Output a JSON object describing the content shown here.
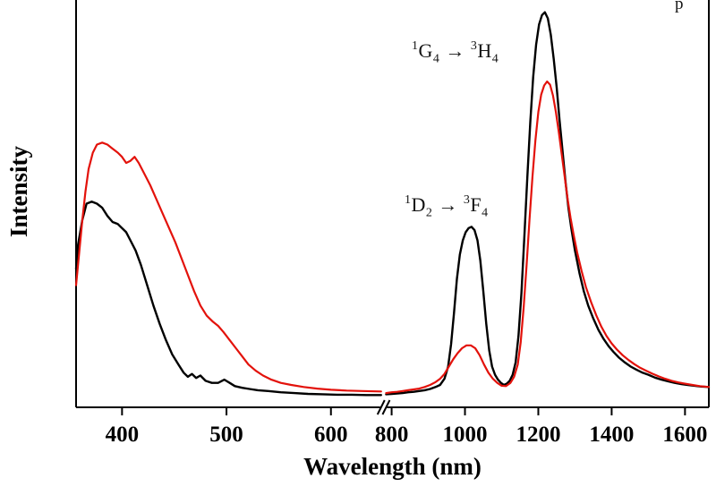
{
  "figure": {
    "corner_fragment": "p"
  },
  "chart_data": {
    "type": "line",
    "title": "",
    "xlabel": "Wavelength (nm)",
    "ylabel": "Intensity",
    "y_unit": "arbitrary units (no y ticks shown)",
    "grid": false,
    "legend_position": "none",
    "ylim": [
      0,
      1
    ],
    "x_axis": {
      "ticks": [
        400,
        500,
        600,
        800,
        1000,
        1200,
        1400,
        1600
      ],
      "break": {
        "left_domain": [
          356,
          648
        ],
        "left_range": [
          0,
          0.482
        ],
        "right_domain": [
          785,
          1665
        ],
        "right_range": [
          0.49,
          1.0
        ]
      }
    },
    "annotations": [
      {
        "label": "1G4 -> 3H4",
        "from_sup": "1",
        "from_letter": "G",
        "from_sub": "4",
        "arrow": "→",
        "to_sup": "3",
        "to_letter": "H",
        "to_sub": "4"
      },
      {
        "label": "1D2 -> 3F4",
        "from_sup": "1",
        "from_letter": "D",
        "from_sub": "2",
        "arrow": "→",
        "to_sup": "3",
        "to_letter": "F",
        "to_sub": "4"
      }
    ],
    "series": [
      {
        "name": "black",
        "color": "#000000",
        "width": 2.4,
        "points": [
          [
            356,
            0.34
          ],
          [
            358,
            0.4
          ],
          [
            362,
            0.46
          ],
          [
            366,
            0.5
          ],
          [
            371,
            0.505
          ],
          [
            376,
            0.5
          ],
          [
            381,
            0.49
          ],
          [
            386,
            0.47
          ],
          [
            391,
            0.455
          ],
          [
            396,
            0.45
          ],
          [
            400,
            0.44
          ],
          [
            404,
            0.43
          ],
          [
            408,
            0.41
          ],
          [
            413,
            0.385
          ],
          [
            418,
            0.35
          ],
          [
            424,
            0.3
          ],
          [
            430,
            0.25
          ],
          [
            436,
            0.205
          ],
          [
            442,
            0.165
          ],
          [
            448,
            0.13
          ],
          [
            454,
            0.105
          ],
          [
            459,
            0.085
          ],
          [
            463,
            0.075
          ],
          [
            467,
            0.082
          ],
          [
            471,
            0.072
          ],
          [
            475,
            0.078
          ],
          [
            480,
            0.065
          ],
          [
            486,
            0.06
          ],
          [
            492,
            0.06
          ],
          [
            498,
            0.068
          ],
          [
            503,
            0.06
          ],
          [
            508,
            0.052
          ],
          [
            515,
            0.048
          ],
          [
            522,
            0.045
          ],
          [
            530,
            0.042
          ],
          [
            540,
            0.04
          ],
          [
            552,
            0.037
          ],
          [
            565,
            0.035
          ],
          [
            578,
            0.033
          ],
          [
            592,
            0.032
          ],
          [
            606,
            0.031
          ],
          [
            620,
            0.031
          ],
          [
            634,
            0.03
          ],
          [
            648,
            0.03
          ],
          [
            785,
            0.032
          ],
          [
            800,
            0.033
          ],
          [
            815,
            0.034
          ],
          [
            830,
            0.035
          ],
          [
            845,
            0.037
          ],
          [
            860,
            0.038
          ],
          [
            875,
            0.04
          ],
          [
            890,
            0.042
          ],
          [
            905,
            0.045
          ],
          [
            920,
            0.05
          ],
          [
            932,
            0.055
          ],
          [
            944,
            0.07
          ],
          [
            954,
            0.1
          ],
          [
            962,
            0.155
          ],
          [
            970,
            0.23
          ],
          [
            978,
            0.315
          ],
          [
            986,
            0.375
          ],
          [
            994,
            0.41
          ],
          [
            1002,
            0.43
          ],
          [
            1010,
            0.44
          ],
          [
            1018,
            0.443
          ],
          [
            1026,
            0.435
          ],
          [
            1034,
            0.41
          ],
          [
            1042,
            0.36
          ],
          [
            1050,
            0.285
          ],
          [
            1058,
            0.205
          ],
          [
            1066,
            0.14
          ],
          [
            1074,
            0.1
          ],
          [
            1082,
            0.08
          ],
          [
            1090,
            0.068
          ],
          [
            1098,
            0.06
          ],
          [
            1106,
            0.055
          ],
          [
            1114,
            0.058
          ],
          [
            1122,
            0.065
          ],
          [
            1130,
            0.08
          ],
          [
            1138,
            0.11
          ],
          [
            1146,
            0.175
          ],
          [
            1154,
            0.28
          ],
          [
            1162,
            0.42
          ],
          [
            1170,
            0.565
          ],
          [
            1178,
            0.7
          ],
          [
            1186,
            0.81
          ],
          [
            1194,
            0.89
          ],
          [
            1202,
            0.94
          ],
          [
            1210,
            0.963
          ],
          [
            1218,
            0.97
          ],
          [
            1226,
            0.955
          ],
          [
            1234,
            0.915
          ],
          [
            1242,
            0.855
          ],
          [
            1250,
            0.785
          ],
          [
            1258,
            0.705
          ],
          [
            1266,
            0.63
          ],
          [
            1274,
            0.555
          ],
          [
            1282,
            0.49
          ],
          [
            1290,
            0.44
          ],
          [
            1300,
            0.385
          ],
          [
            1312,
            0.33
          ],
          [
            1324,
            0.285
          ],
          [
            1336,
            0.25
          ],
          [
            1350,
            0.218
          ],
          [
            1364,
            0.19
          ],
          [
            1378,
            0.168
          ],
          [
            1392,
            0.15
          ],
          [
            1406,
            0.135
          ],
          [
            1420,
            0.122
          ],
          [
            1436,
            0.11
          ],
          [
            1452,
            0.1
          ],
          [
            1468,
            0.092
          ],
          [
            1484,
            0.085
          ],
          [
            1500,
            0.08
          ],
          [
            1518,
            0.073
          ],
          [
            1536,
            0.068
          ],
          [
            1554,
            0.064
          ],
          [
            1572,
            0.06
          ],
          [
            1590,
            0.057
          ],
          [
            1608,
            0.055
          ],
          [
            1626,
            0.053
          ],
          [
            1644,
            0.051
          ],
          [
            1665,
            0.05
          ]
        ]
      },
      {
        "name": "red",
        "color": "#e3120b",
        "width": 2.2,
        "points": [
          [
            356,
            0.3
          ],
          [
            359,
            0.38
          ],
          [
            362,
            0.46
          ],
          [
            365,
            0.53
          ],
          [
            368,
            0.585
          ],
          [
            372,
            0.625
          ],
          [
            376,
            0.645
          ],
          [
            381,
            0.65
          ],
          [
            386,
            0.645
          ],
          [
            391,
            0.635
          ],
          [
            396,
            0.625
          ],
          [
            400,
            0.615
          ],
          [
            404,
            0.6
          ],
          [
            408,
            0.605
          ],
          [
            412,
            0.615
          ],
          [
            416,
            0.6
          ],
          [
            421,
            0.575
          ],
          [
            427,
            0.545
          ],
          [
            433,
            0.51
          ],
          [
            439,
            0.475
          ],
          [
            445,
            0.44
          ],
          [
            451,
            0.405
          ],
          [
            457,
            0.365
          ],
          [
            463,
            0.325
          ],
          [
            469,
            0.285
          ],
          [
            475,
            0.25
          ],
          [
            481,
            0.225
          ],
          [
            487,
            0.21
          ],
          [
            492,
            0.2
          ],
          [
            497,
            0.185
          ],
          [
            503,
            0.165
          ],
          [
            509,
            0.145
          ],
          [
            515,
            0.125
          ],
          [
            521,
            0.105
          ],
          [
            528,
            0.09
          ],
          [
            535,
            0.078
          ],
          [
            543,
            0.068
          ],
          [
            552,
            0.06
          ],
          [
            562,
            0.055
          ],
          [
            574,
            0.05
          ],
          [
            587,
            0.046
          ],
          [
            600,
            0.043
          ],
          [
            615,
            0.041
          ],
          [
            630,
            0.04
          ],
          [
            648,
            0.039
          ],
          [
            785,
            0.035
          ],
          [
            800,
            0.037
          ],
          [
            815,
            0.038
          ],
          [
            830,
            0.04
          ],
          [
            845,
            0.042
          ],
          [
            860,
            0.044
          ],
          [
            875,
            0.046
          ],
          [
            890,
            0.05
          ],
          [
            905,
            0.055
          ],
          [
            920,
            0.062
          ],
          [
            932,
            0.07
          ],
          [
            944,
            0.082
          ],
          [
            956,
            0.1
          ],
          [
            968,
            0.118
          ],
          [
            980,
            0.133
          ],
          [
            992,
            0.145
          ],
          [
            1004,
            0.152
          ],
          [
            1016,
            0.152
          ],
          [
            1028,
            0.145
          ],
          [
            1040,
            0.128
          ],
          [
            1052,
            0.105
          ],
          [
            1064,
            0.085
          ],
          [
            1076,
            0.07
          ],
          [
            1088,
            0.06
          ],
          [
            1100,
            0.053
          ],
          [
            1112,
            0.052
          ],
          [
            1124,
            0.06
          ],
          [
            1134,
            0.075
          ],
          [
            1144,
            0.105
          ],
          [
            1152,
            0.16
          ],
          [
            1160,
            0.245
          ],
          [
            1168,
            0.35
          ],
          [
            1176,
            0.46
          ],
          [
            1184,
            0.565
          ],
          [
            1192,
            0.655
          ],
          [
            1200,
            0.725
          ],
          [
            1208,
            0.768
          ],
          [
            1216,
            0.79
          ],
          [
            1224,
            0.8
          ],
          [
            1232,
            0.792
          ],
          [
            1240,
            0.765
          ],
          [
            1248,
            0.725
          ],
          [
            1256,
            0.675
          ],
          [
            1264,
            0.62
          ],
          [
            1272,
            0.565
          ],
          [
            1280,
            0.51
          ],
          [
            1288,
            0.465
          ],
          [
            1296,
            0.425
          ],
          [
            1306,
            0.38
          ],
          [
            1318,
            0.335
          ],
          [
            1330,
            0.295
          ],
          [
            1344,
            0.258
          ],
          [
            1358,
            0.226
          ],
          [
            1372,
            0.198
          ],
          [
            1386,
            0.175
          ],
          [
            1400,
            0.157
          ],
          [
            1414,
            0.142
          ],
          [
            1430,
            0.128
          ],
          [
            1446,
            0.116
          ],
          [
            1462,
            0.106
          ],
          [
            1478,
            0.097
          ],
          [
            1494,
            0.09
          ],
          [
            1510,
            0.083
          ],
          [
            1528,
            0.076
          ],
          [
            1546,
            0.07
          ],
          [
            1564,
            0.065
          ],
          [
            1582,
            0.061
          ],
          [
            1600,
            0.058
          ],
          [
            1620,
            0.055
          ],
          [
            1640,
            0.052
          ],
          [
            1665,
            0.05
          ]
        ]
      }
    ]
  }
}
